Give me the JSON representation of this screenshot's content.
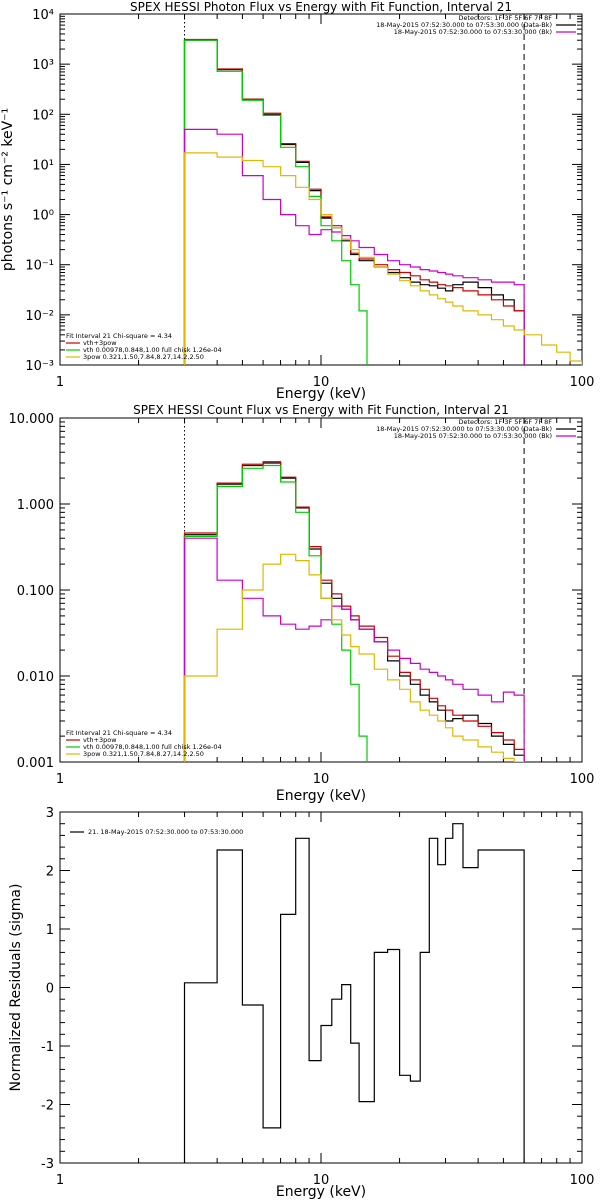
{
  "chart_data": [
    {
      "type": "line",
      "title": "SPEX HESSI Photon Flux vs Energy with Fit Function, Interval 21",
      "xlabel": "Energy (keV)",
      "ylabel": "photons s⁻¹ cm⁻² keV⁻¹",
      "x_scale": "log",
      "y_scale": "log",
      "xlim": [
        1,
        100
      ],
      "ylim": [
        0.001,
        10000
      ],
      "x_ticks": [
        {
          "v": 1,
          "label": "1"
        },
        {
          "v": 10,
          "label": "10"
        },
        {
          "v": 100,
          "label": "100"
        }
      ],
      "y_ticks": [
        {
          "v": 0.001,
          "label": "10⁻³"
        },
        {
          "v": 0.01,
          "label": "10⁻²"
        },
        {
          "v": 0.1,
          "label": "10⁻¹"
        },
        {
          "v": 1,
          "label": "10⁰"
        },
        {
          "v": 10,
          "label": "10¹"
        },
        {
          "v": 100,
          "label": "10²"
        },
        {
          "v": 1000,
          "label": "10³"
        },
        {
          "v": 10000,
          "label": "10⁴"
        }
      ],
      "vlines": [
        {
          "x": 3,
          "style": "dotted"
        },
        {
          "x": 60,
          "style": "dashed"
        }
      ],
      "legend_tr": [
        {
          "text": "Detectors: 1F 3F 5F 6F 7F 8F",
          "color": ""
        },
        {
          "text": "18-May-2015 07:52:30.000 to 07:53:30.000 (Data-Bk)",
          "color": "#000000"
        },
        {
          "text": "18-May-2015 07:52:30.000 to 07:53:30.000 (Bk)",
          "color": "#cc00cc"
        }
      ],
      "legend_bl": [
        {
          "text": "Fit Interval 21    Chi-square = 4.34",
          "color": ""
        },
        {
          "text": "vth+3pow",
          "color": "#cc0000"
        },
        {
          "text": "vth 0.00978,0.848,1.00   full chisk 1.26e-04",
          "color": "#00cc00"
        },
        {
          "text": "3pow 0.321,1.50,7.84,8.27,14.2,2.50",
          "color": "#e0b800"
        }
      ],
      "series": [
        {
          "color": "#000000",
          "edges": [
            3,
            4,
            5,
            6,
            7,
            8,
            9,
            10,
            11,
            12,
            13,
            14,
            16,
            18,
            20,
            22,
            24,
            26,
            28,
            30,
            32,
            35,
            40,
            45,
            50,
            55,
            60
          ],
          "values": [
            3000,
            780,
            200,
            100,
            25,
            11,
            3,
            0.85,
            0.55,
            0.3,
            0.16,
            0.12,
            0.09,
            0.07,
            0.055,
            0.045,
            0.04,
            0.038,
            0.034,
            0.03,
            0.04,
            0.045,
            0.035,
            0.025,
            0.02,
            0.012
          ]
        },
        {
          "color": "#cc0000",
          "edges": [
            3,
            4,
            5,
            6,
            7,
            8,
            9,
            10,
            11,
            12,
            13,
            14,
            16,
            18,
            20,
            22,
            24,
            26,
            28,
            30,
            32,
            35,
            40,
            45,
            50,
            55,
            60
          ],
          "values": [
            3100,
            800,
            200,
            105,
            26,
            11.5,
            3.2,
            0.9,
            0.6,
            0.32,
            0.17,
            0.13,
            0.1,
            0.08,
            0.07,
            0.06,
            0.05,
            0.045,
            0.04,
            0.038,
            0.035,
            0.03,
            0.025,
            0.02,
            0.015,
            0.012
          ]
        },
        {
          "color": "#00cc00",
          "edges": [
            3,
            4,
            5,
            6,
            7,
            8,
            9,
            10,
            11,
            12,
            13,
            14,
            15
          ],
          "values": [
            3000,
            720,
            190,
            95,
            22,
            9,
            2.3,
            0.6,
            0.3,
            0.12,
            0.04,
            0.012
          ]
        },
        {
          "color": "#cc00cc",
          "edges": [
            3,
            4,
            5,
            6,
            7,
            8,
            9,
            10,
            11,
            12,
            13,
            14,
            16,
            18,
            20,
            22,
            24,
            26,
            28,
            30,
            32,
            35,
            40,
            45,
            50,
            55,
            60
          ],
          "values": [
            50,
            40,
            6,
            2,
            1,
            0.6,
            0.4,
            0.5,
            0.45,
            0.38,
            0.3,
            0.22,
            0.16,
            0.12,
            0.1,
            0.09,
            0.08,
            0.075,
            0.07,
            0.065,
            0.06,
            0.055,
            0.05,
            0.045,
            0.045,
            0.04
          ]
        },
        {
          "color": "#e0b800",
          "edges": [
            3,
            4,
            5,
            6,
            7,
            8,
            9,
            10,
            11,
            12,
            13,
            14,
            16,
            18,
            20,
            22,
            24,
            26,
            28,
            30,
            32,
            35,
            40,
            45,
            50,
            55,
            60,
            70,
            80,
            90,
            100
          ],
          "values": [
            17,
            14,
            12,
            9,
            6,
            3.5,
            2,
            1,
            0.55,
            0.32,
            0.2,
            0.14,
            0.09,
            0.065,
            0.048,
            0.038,
            0.03,
            0.025,
            0.021,
            0.018,
            0.015,
            0.012,
            0.01,
            0.008,
            0.006,
            0.005,
            0.004,
            0.0025,
            0.0018,
            0.0012
          ]
        }
      ]
    },
    {
      "type": "line",
      "title": "SPEX HESSI Count Flux vs Energy with Fit Function, Interval 21",
      "xlabel": "Energy (keV)",
      "ylabel": "",
      "x_scale": "log",
      "y_scale": "log",
      "xlim": [
        1,
        100
      ],
      "ylim": [
        0.001,
        10
      ],
      "x_ticks": [
        {
          "v": 1,
          "label": "1"
        },
        {
          "v": 10,
          "label": "10"
        },
        {
          "v": 100,
          "label": "100"
        }
      ],
      "y_ticks": [
        {
          "v": 0.001,
          "label": "0.001"
        },
        {
          "v": 0.01,
          "label": "0.010"
        },
        {
          "v": 0.1,
          "label": "0.100"
        },
        {
          "v": 1,
          "label": "1.000"
        },
        {
          "v": 10,
          "label": "10.000"
        }
      ],
      "vlines": [
        {
          "x": 3,
          "style": "dotted"
        },
        {
          "x": 60,
          "style": "dashed"
        }
      ],
      "legend_tr": [
        {
          "text": "Detectors: 1F 3F 5F 6F 7F 8F",
          "color": ""
        },
        {
          "text": "18-May-2015 07:52:30.000 to 07:53:30.000 (Data-Bk)",
          "color": "#000000"
        },
        {
          "text": "18-May-2015 07:52:30.000 to 07:53:30.000 (Bk)",
          "color": "#cc00cc"
        }
      ],
      "legend_bl": [
        {
          "text": "Fit Interval 21    Chi-square = 4.34",
          "color": ""
        },
        {
          "text": "vth+3pow",
          "color": "#cc0000"
        },
        {
          "text": "vth 0.00978,0.848,1.00   full chisk 1.26e-04",
          "color": "#00cc00"
        },
        {
          "text": "3pow 0.321,1.50,7.84,8.27,14.2,2.50",
          "color": "#e0b800"
        }
      ],
      "series": [
        {
          "color": "#000000",
          "edges": [
            3,
            4,
            5,
            6,
            7,
            8,
            9,
            10,
            11,
            12,
            13,
            14,
            16,
            18,
            20,
            22,
            24,
            26,
            28,
            30,
            32,
            35,
            40,
            45,
            50,
            55,
            60
          ],
          "values": [
            0.44,
            1.7,
            2.8,
            3.0,
            2.0,
            0.9,
            0.3,
            0.12,
            0.08,
            0.06,
            0.045,
            0.035,
            0.025,
            0.015,
            0.01,
            0.008,
            0.006,
            0.005,
            0.004,
            0.003,
            0.0032,
            0.0035,
            0.0028,
            0.002,
            0.0016,
            0.0012
          ]
        },
        {
          "color": "#cc0000",
          "edges": [
            3,
            4,
            5,
            6,
            7,
            8,
            9,
            10,
            11,
            12,
            13,
            14,
            16,
            18,
            20,
            22,
            24,
            26,
            28,
            30,
            32,
            35,
            40,
            45,
            50,
            55,
            60
          ],
          "values": [
            0.46,
            1.75,
            2.9,
            3.1,
            2.05,
            0.92,
            0.32,
            0.13,
            0.09,
            0.065,
            0.05,
            0.038,
            0.028,
            0.017,
            0.011,
            0.009,
            0.007,
            0.0055,
            0.0045,
            0.004,
            0.0035,
            0.003,
            0.0026,
            0.0022,
            0.0018,
            0.0014
          ]
        },
        {
          "color": "#00cc00",
          "edges": [
            3,
            4,
            5,
            6,
            7,
            8,
            9,
            10,
            11,
            12,
            13,
            14,
            15
          ],
          "values": [
            0.42,
            1.6,
            2.6,
            2.8,
            1.8,
            0.8,
            0.25,
            0.08,
            0.04,
            0.02,
            0.008,
            0.002
          ]
        },
        {
          "color": "#cc00cc",
          "edges": [
            3,
            4,
            5,
            6,
            7,
            8,
            9,
            10,
            11,
            12,
            13,
            14,
            16,
            18,
            20,
            22,
            24,
            26,
            28,
            30,
            32,
            35,
            40,
            45,
            50,
            55,
            60
          ],
          "values": [
            0.4,
            0.13,
            0.08,
            0.05,
            0.04,
            0.035,
            0.038,
            0.045,
            0.065,
            0.06,
            0.045,
            0.035,
            0.025,
            0.02,
            0.016,
            0.014,
            0.012,
            0.011,
            0.01,
            0.009,
            0.008,
            0.007,
            0.006,
            0.005,
            0.0065,
            0.006
          ]
        },
        {
          "color": "#e0b800",
          "edges": [
            3,
            4,
            5,
            6,
            7,
            8,
            9,
            10,
            11,
            12,
            13,
            14,
            16,
            18,
            20,
            22,
            24,
            26,
            28,
            30,
            32,
            35,
            40,
            45,
            50,
            55,
            60
          ],
          "values": [
            0.01,
            0.035,
            0.1,
            0.2,
            0.26,
            0.22,
            0.15,
            0.08,
            0.045,
            0.03,
            0.022,
            0.018,
            0.012,
            0.009,
            0.007,
            0.005,
            0.004,
            0.0035,
            0.003,
            0.0025,
            0.002,
            0.0018,
            0.0015,
            0.0013,
            0.0011,
            0.001
          ]
        }
      ]
    },
    {
      "type": "line",
      "title": "",
      "xlabel": "Energy (keV)",
      "ylabel": "Normalized Residuals (sigma)",
      "x_scale": "log",
      "y_scale": "linear",
      "xlim": [
        1,
        100
      ],
      "ylim": [
        -3,
        3
      ],
      "x_ticks": [
        {
          "v": 1,
          "label": "1"
        },
        {
          "v": 10,
          "label": "10"
        },
        {
          "v": 100,
          "label": "100"
        }
      ],
      "y_ticks": [
        {
          "v": -3,
          "label": "-3"
        },
        {
          "v": -2,
          "label": "-2"
        },
        {
          "v": -1,
          "label": "-1"
        },
        {
          "v": 0,
          "label": "0"
        },
        {
          "v": 1,
          "label": "1"
        },
        {
          "v": 2,
          "label": "2"
        },
        {
          "v": 3,
          "label": "3"
        }
      ],
      "vlines": [],
      "legend_tl": [
        {
          "text": "21. 18-May-2015 07:52:30.000 to 07:53:30.000",
          "color": "#000000"
        }
      ],
      "series": [
        {
          "color": "#000000",
          "edges": [
            3,
            4,
            5,
            6,
            7,
            8,
            9,
            10,
            11,
            12,
            13,
            14,
            16,
            18,
            20,
            22,
            24,
            26,
            28,
            30,
            32,
            35,
            40,
            45,
            50,
            55,
            60
          ],
          "values": [
            0.08,
            2.35,
            -0.3,
            -2.4,
            1.25,
            2.55,
            -1.25,
            -0.65,
            -0.2,
            0.05,
            -0.95,
            -1.95,
            0.6,
            0.65,
            -1.5,
            -1.6,
            0.6,
            2.55,
            2.1,
            2.55,
            2.8,
            2.05,
            2.35,
            2.35,
            2.35,
            2.35
          ]
        }
      ]
    }
  ]
}
